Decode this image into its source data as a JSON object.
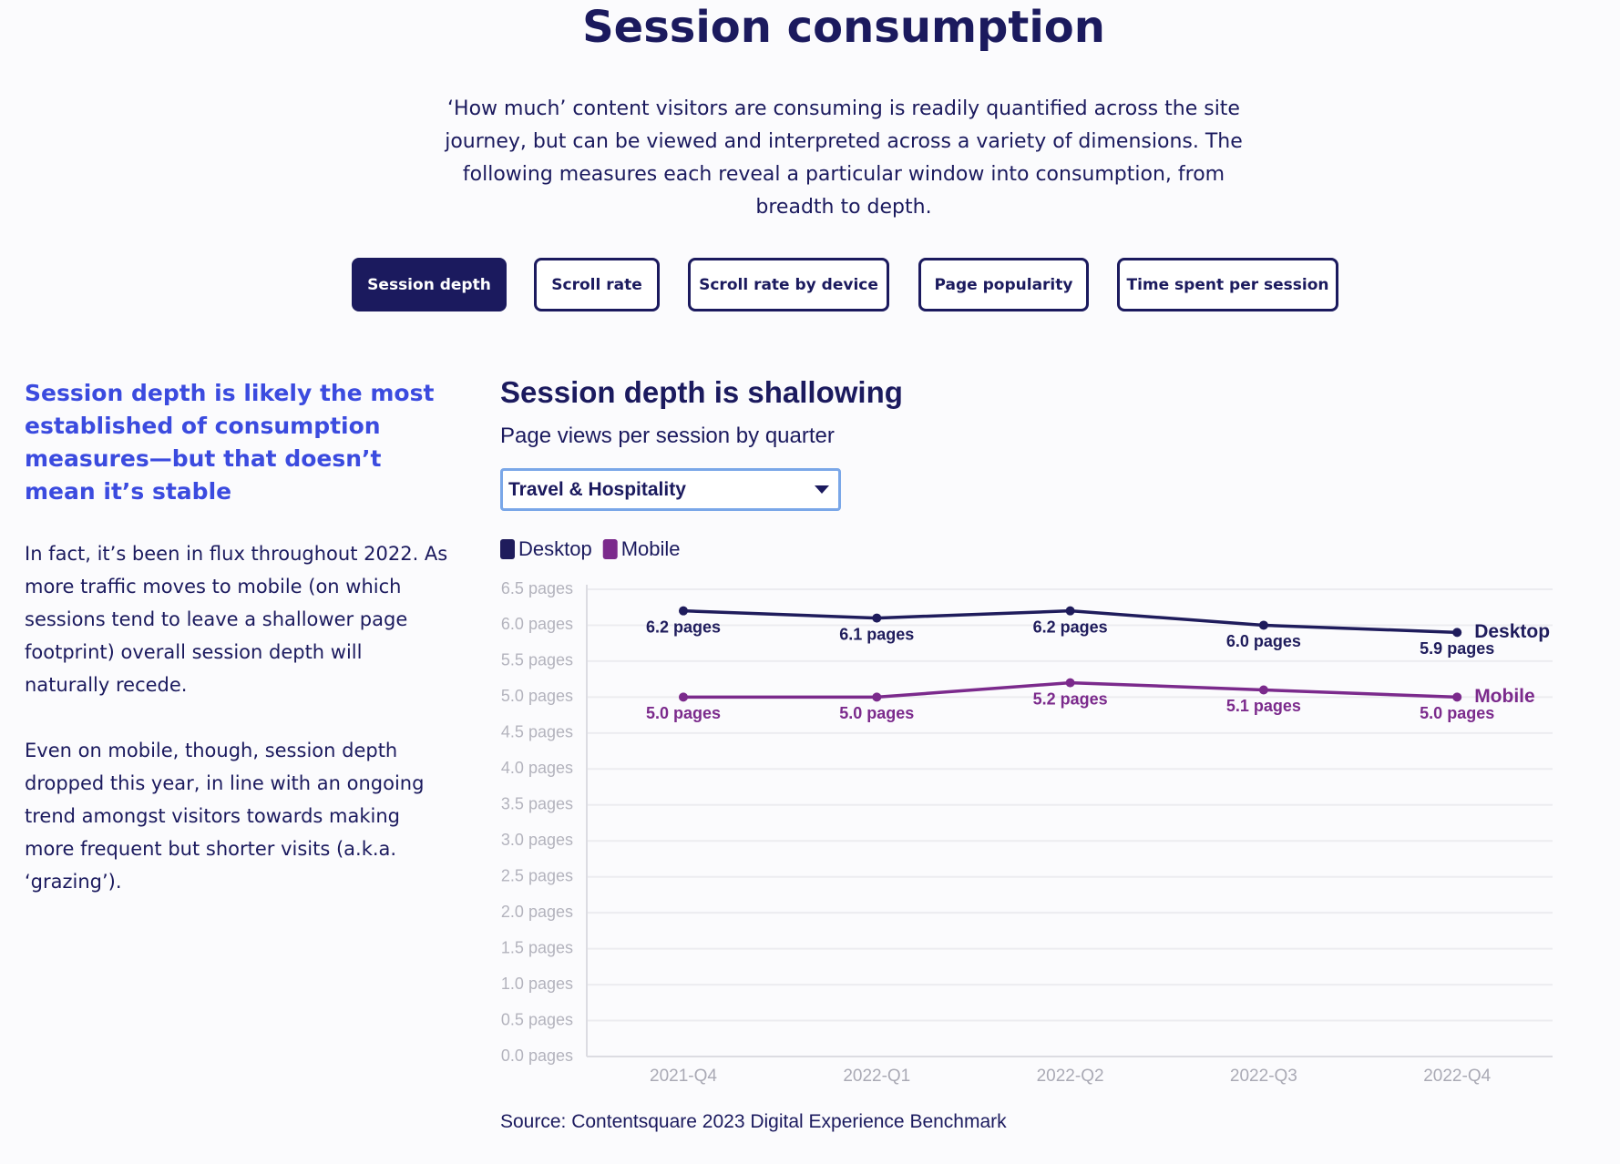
{
  "header": {
    "title": "Session consumption",
    "intro": "‘How much’ content visitors are consuming is readily quantified across the site journey, but can be viewed and interpreted across a variety of dimensions. The following measures each reveal a particular window into consumption, from breadth to depth."
  },
  "tabs": [
    "Session depth",
    "Scroll rate",
    "Scroll rate by device",
    "Page popularity",
    "Time spent per session"
  ],
  "sidebar": {
    "heading": "Session depth is likely the most established of consumption measures—but that doesn’t mean it’s stable",
    "paragraphs": [
      "In fact, it’s been in flux throughout 2022. As more traffic moves to mobile (on which sessions tend to leave a shallower page footprint) overall session depth will naturally recede.",
      "Even on mobile, though, session depth dropped this year, in line with an ongoing trend amongst visitors towards making more frequent but shorter visits (a.k.a. ‘grazing’)."
    ]
  },
  "dropdown": "Travel & Hospitality",
  "chart_data": {
    "type": "line",
    "title": "Session depth is shallowing",
    "subtitle": "Page views per session by quarter",
    "source": "Source: Contentsquare 2023 Digital Experience Benchmark",
    "categories": [
      "2021-Q4",
      "2022-Q1",
      "2022-Q2",
      "2022-Q3",
      "2022-Q4"
    ],
    "series": [
      {
        "name": "Desktop",
        "color": "#1f1c5c",
        "values": [
          6.2,
          6.1,
          6.2,
          6.0,
          5.9
        ],
        "value_labels": [
          "6.2 pages",
          "6.1 pages",
          "6.2 pages",
          "6.0 pages",
          "5.9 pages"
        ]
      },
      {
        "name": "Mobile",
        "color": "#7b2a8c",
        "values": [
          5.0,
          5.0,
          5.2,
          5.1,
          5.0
        ],
        "value_labels": [
          "5.0 pages",
          "5.0 pages",
          "5.2 pages",
          "5.1 pages",
          "5.0 pages"
        ]
      }
    ],
    "ylim": [
      0,
      6.5
    ],
    "yticks": [
      {
        "value": 0,
        "label": "0.0 pages"
      },
      {
        "value": 0.5,
        "label": "0.5 pages"
      },
      {
        "value": 1,
        "label": "1.0 pages"
      },
      {
        "value": 1.5,
        "label": "1.5 pages"
      },
      {
        "value": 2,
        "label": "2.0 pages"
      },
      {
        "value": 2.5,
        "label": "2.5 pages"
      },
      {
        "value": 3,
        "label": "3.0 pages"
      },
      {
        "value": 3.5,
        "label": "3.5 pages"
      },
      {
        "value": 4,
        "label": "4.0 pages"
      },
      {
        "value": 4.5,
        "label": "4.5 pages"
      },
      {
        "value": 5,
        "label": "5.0 pages"
      },
      {
        "value": 5.5,
        "label": "5.5 pages"
      },
      {
        "value": 6,
        "label": "6.0 pages"
      },
      {
        "value": 6.5,
        "label": "6.5 pages"
      }
    ],
    "grid": true
  }
}
